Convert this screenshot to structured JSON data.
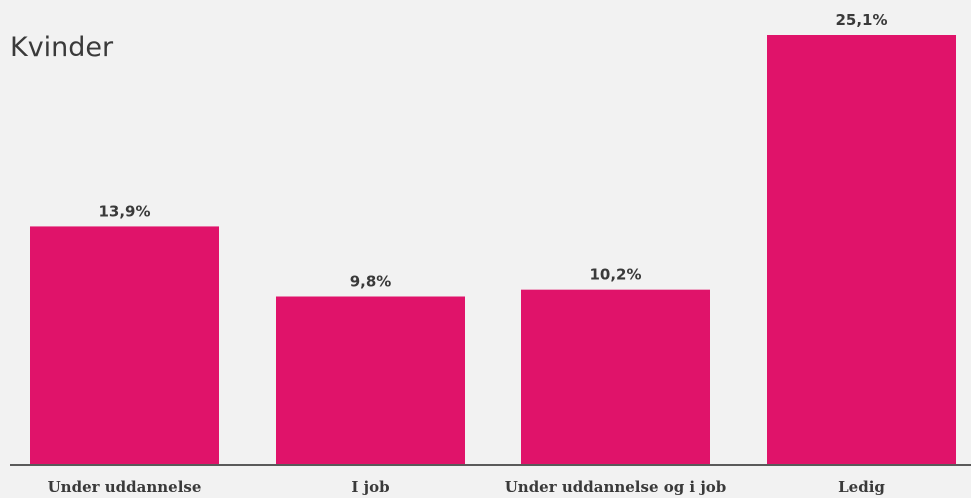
{
  "chart_data": {
    "type": "bar",
    "title": "Kvinder",
    "categories": [
      "Under uddannelse",
      "I job",
      "Under uddannelse og i job",
      "Ledig"
    ],
    "values": [
      13.9,
      9.8,
      10.2,
      25.1
    ],
    "value_labels": [
      "13,9%",
      "9,8%",
      "10,2%",
      "25,1%"
    ],
    "xlabel": "",
    "ylabel": "",
    "ylim": [
      0,
      25.1
    ],
    "grid": false,
    "legend": "none",
    "bar_color": "#e0136a"
  }
}
